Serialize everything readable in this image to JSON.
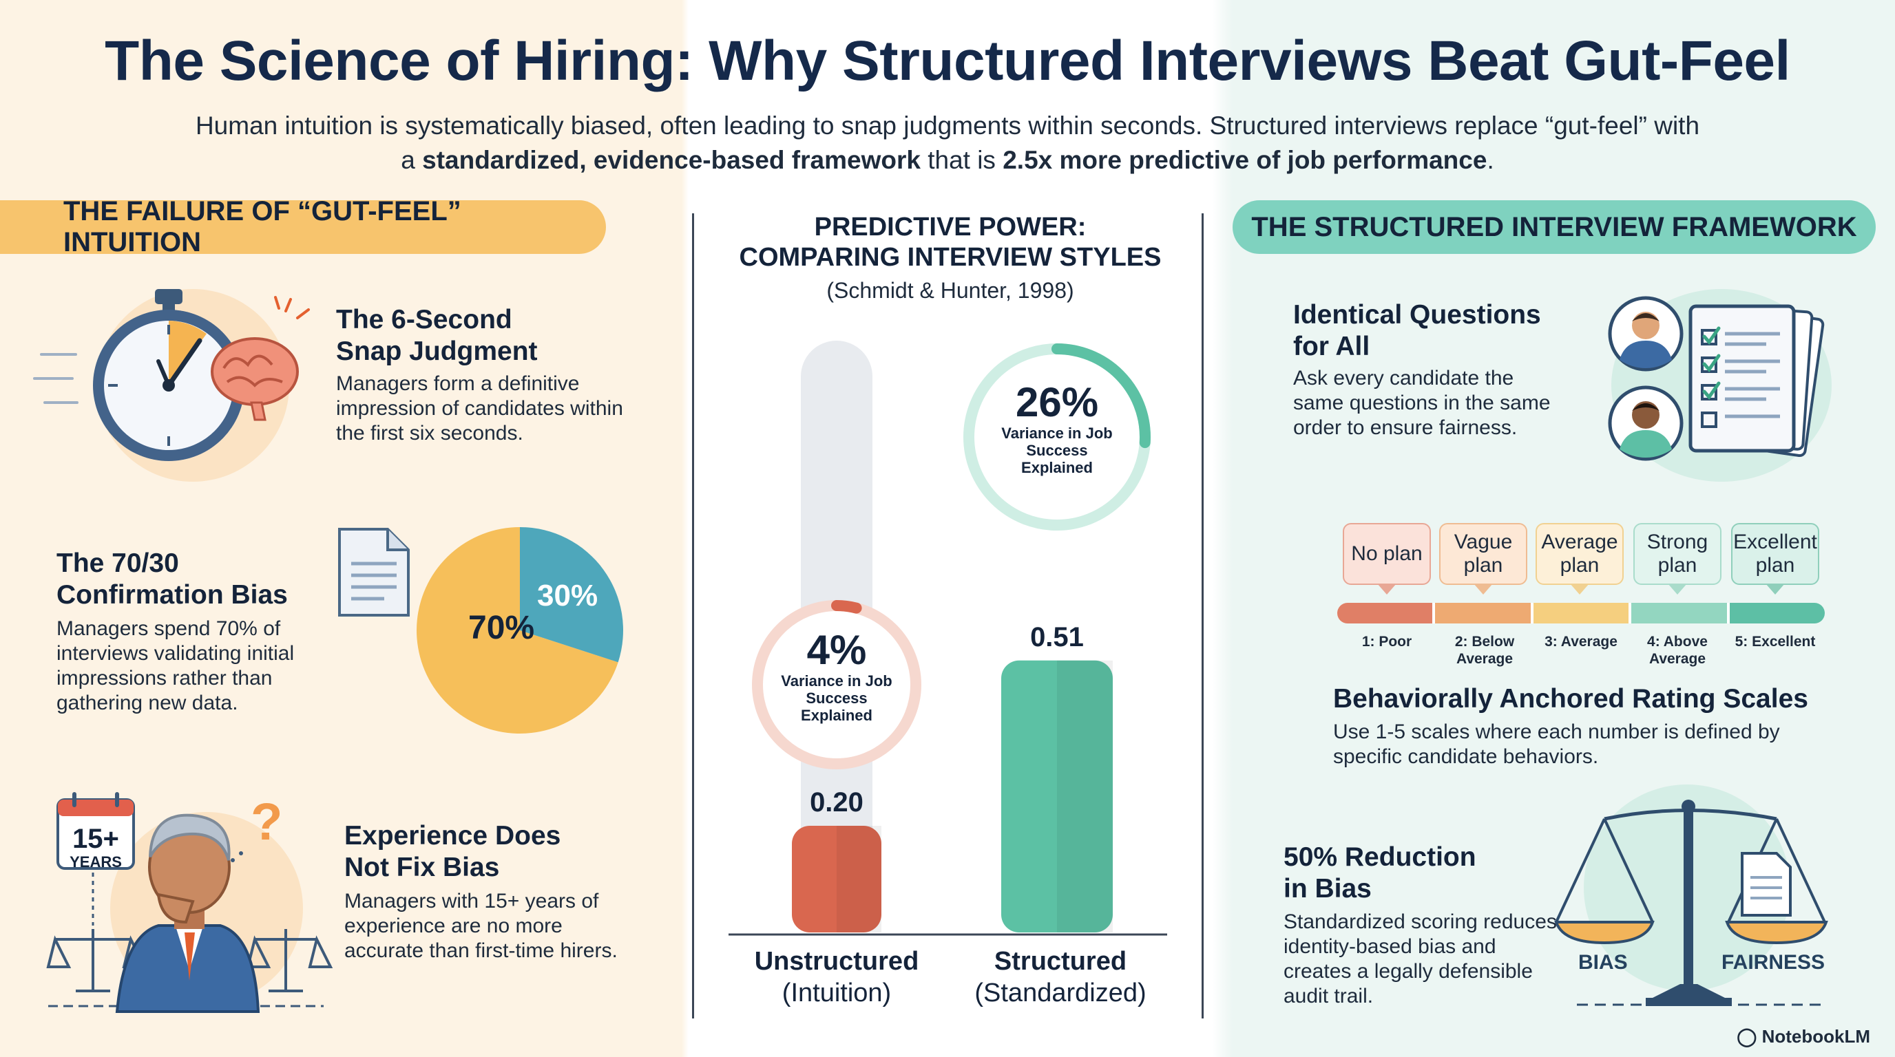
{
  "header": {
    "title": "The Science of Hiring: Why Structured Interviews Beat Gut-Feel",
    "subtitle_part1": "Human intuition is systematically biased, often leading to snap judgments within seconds. Structured interviews replace “gut-feel” with a ",
    "subtitle_bold1": "standardized, evidence-based framework",
    "subtitle_part2": " that is ",
    "subtitle_bold2": "2.5x more predictive of job performance",
    "subtitle_part3": "."
  },
  "left": {
    "banner": "THE FAILURE OF “GUT-FEEL” INTUITION",
    "item1": {
      "title_line1": "The 6-Second",
      "title_line2": "Snap Judgment",
      "text": "Managers form a definitive impression of candidates within the first six seconds."
    },
    "item2": {
      "title_line1": "The 70/30",
      "title_line2": "Confirmation Bias",
      "text": "Managers spend 70% of interviews validating initial impressions rather than gathering new data.",
      "pie_big_label": "70%",
      "pie_small_label": "30%",
      "pie_big_value": 70,
      "pie_small_value": 30,
      "pie_big_color": "#f6bf5a",
      "pie_small_color": "#4ea7bb"
    },
    "item3": {
      "title_line1": "Experience Does",
      "title_line2": "Not Fix Bias",
      "text": "Managers with 15+ years of experience are no more accurate than first-time hirers.",
      "calendar_number": "15+",
      "calendar_unit": "YEARS"
    }
  },
  "center": {
    "title_line1": "PREDICTIVE POWER:",
    "title_line2": "COMPARING INTERVIEW STYLES",
    "citation": "(Schmidt & Hunter, 1998)"
  },
  "chart_data": {
    "type": "bar",
    "categories": [
      "Unstructured",
      "Structured"
    ],
    "category_sublabels": [
      "(Intuition)",
      "(Standardized)"
    ],
    "values": [
      0.2,
      0.51
    ],
    "value_labels": [
      "0.20",
      "0.51"
    ],
    "variance_pct": [
      4,
      26
    ],
    "variance_labels": [
      "4%",
      "26%"
    ],
    "variance_caption": "Variance in Job Success Explained",
    "ylim": [
      0,
      1
    ],
    "colors": [
      "#d9674f",
      "#5cc1a4"
    ]
  },
  "right": {
    "banner": "THE STRUCTURED INTERVIEW FRAMEWORK",
    "item1": {
      "title_line1": "Identical Questions",
      "title_line2": "for All",
      "text": "Ask every candidate the same questions in the same order to ensure fairness."
    },
    "scale": {
      "bubbles": [
        "No plan",
        "Vague plan",
        "Average plan",
        "Strong plan",
        "Excellent plan"
      ],
      "labels": [
        "1: Poor",
        "2: Below Average",
        "3: Average",
        "4: Above Average",
        "5: Excellent"
      ],
      "colors": [
        "#e07f66",
        "#eeaa72",
        "#f5cf7f",
        "#93d6c0",
        "#5dbfa5"
      ]
    },
    "item2": {
      "title": "Behaviorally Anchored Rating Scales",
      "text": "Use 1-5 scales where each number is defined by specific candidate behaviors."
    },
    "item3": {
      "title_line1": "50% Reduction",
      "title_line2": "in Bias",
      "text": "Standardized scoring reduces identity-based bias and creates a legally defensible audit trail.",
      "scale_left_label": "BIAS",
      "scale_right_label": "FAIRNESS"
    }
  },
  "footer": {
    "brand": "NotebookLM"
  }
}
